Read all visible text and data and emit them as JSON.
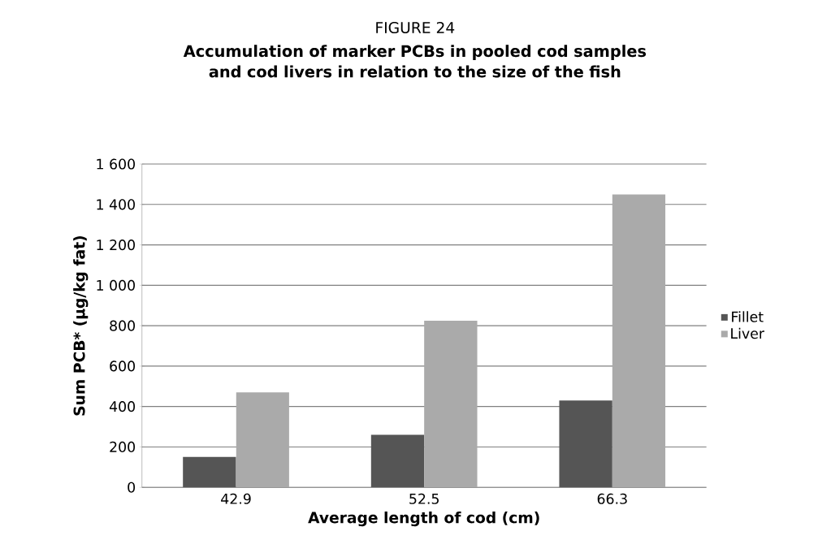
{
  "chart_data": {
    "type": "bar",
    "subtitle": "FIGURE 24",
    "title": "Accumulation of marker PCBs in pooled cod samples and cod livers in relation to the size of the fish",
    "xlabel": "Average length of cod (cm)",
    "ylabel": "Sum PCB* (µg/kg fat)",
    "categories": [
      "42.9",
      "52.5",
      "66.3"
    ],
    "series": [
      {
        "name": "Fillet",
        "color": "#555555",
        "values": [
          150,
          260,
          430
        ]
      },
      {
        "name": "Liver",
        "color": "#aaaaaa",
        "values": [
          470,
          825,
          1450
        ]
      }
    ],
    "ylim": [
      0,
      1600
    ],
    "yticks": [
      0,
      200,
      400,
      600,
      800,
      {
        "value": 1000,
        "label": "1 000"
      },
      {
        "value": 1200,
        "label": "1 200"
      },
      {
        "value": 1400,
        "label": "1 400"
      },
      {
        "value": 1600,
        "label": "1 600"
      }
    ],
    "grid": "y",
    "legend": "right"
  }
}
